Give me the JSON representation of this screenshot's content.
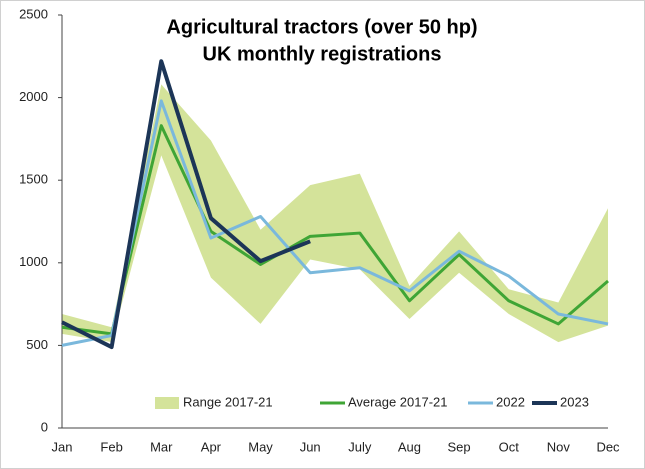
{
  "chart_data": {
    "type": "line",
    "title": [
      "Agricultural tractors (over 50 hp)",
      "UK monthly registrations"
    ],
    "categories": [
      "Jan",
      "Feb",
      "Mar",
      "Apr",
      "May",
      "Jun",
      "July",
      "Aug",
      "Sep",
      "Oct",
      "Nov",
      "Dec"
    ],
    "band": {
      "name": "Range 2017-21",
      "color": "#d4e39a",
      "low": [
        570,
        520,
        1650,
        910,
        630,
        1020,
        960,
        660,
        940,
        690,
        520,
        620
      ],
      "high": [
        690,
        610,
        2080,
        1740,
        1200,
        1470,
        1540,
        860,
        1190,
        840,
        760,
        1330
      ]
    },
    "series": [
      {
        "name": "Average 2017-21",
        "color": "#3fa535",
        "values": [
          610,
          570,
          1830,
          1190,
          990,
          1160,
          1180,
          770,
          1050,
          770,
          630,
          890
        ]
      },
      {
        "name": "2022",
        "color": "#7ab8dc",
        "values": [
          500,
          560,
          1980,
          1150,
          1280,
          940,
          970,
          830,
          1070,
          920,
          690,
          630
        ]
      },
      {
        "name": "2023",
        "color": "#1c3557",
        "values": [
          640,
          490,
          2220,
          1270,
          1010,
          1130,
          null,
          null,
          null,
          null,
          null,
          null
        ]
      }
    ],
    "ylim": [
      0,
      2500
    ],
    "yticks": [
      0,
      500,
      1000,
      1500,
      2000,
      2500
    ],
    "grid": false
  }
}
